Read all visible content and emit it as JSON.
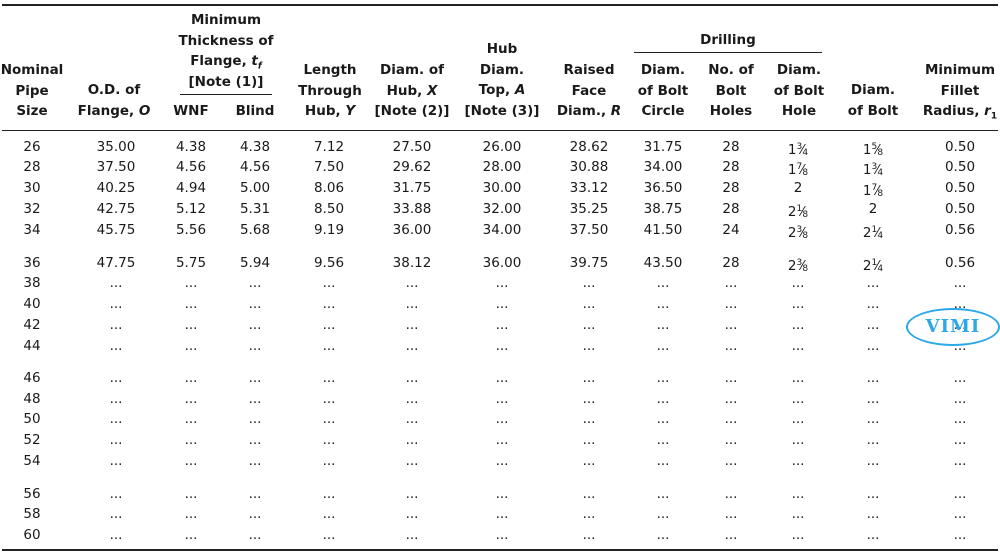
{
  "headers": {
    "nominal": [
      "Nominal",
      "Pipe",
      "Size"
    ],
    "od": "O.D. of",
    "od2": "Flange, ",
    "od_sym": "O",
    "min_title": [
      "Minimum",
      "Thickness of"
    ],
    "min_flange": "Flange, ",
    "min_sym": "t",
    "min_sub": "f",
    "min_note": "[Note (1)]",
    "wnf": "WNF",
    "blind": "Blind",
    "length": [
      "Length",
      "Through"
    ],
    "length_hub": "Hub, ",
    "length_sym": "Y",
    "diam_hub": "Diam. of",
    "diam_hub2": "Hub, ",
    "diam_hub_sym": "X",
    "diam_hub_note": "[Note (2)]",
    "hub_top": [
      "Hub",
      "Diam."
    ],
    "hub_top3": "Top, ",
    "hub_top_sym": "A",
    "hub_top_note": "[Note (3)]",
    "raised": [
      "Raised",
      "Face"
    ],
    "raised3": "Diam., ",
    "raised_sym": "R",
    "drilling": "Drilling",
    "bolt_circle": [
      "Diam.",
      "of Bolt",
      "Circle"
    ],
    "bolt_holes": [
      "No. of",
      "Bolt",
      "Holes"
    ],
    "bolt_hole": [
      "Diam.",
      "of Bolt",
      "Hole"
    ],
    "diam_bolt": [
      "Diam.",
      "of Bolt"
    ],
    "fillet": [
      "Minimum",
      "Fillet"
    ],
    "fillet3": "Radius, ",
    "fillet_sym": "r",
    "fillet_sub": "1"
  },
  "rows": [
    {
      "size": "26",
      "od": "35.00",
      "wnf": "4.38",
      "blind": "4.38",
      "len": "7.12",
      "hub": "27.50",
      "top": "26.00",
      "raised": "28.62",
      "circle": "31.75",
      "holes": "28",
      "hole": {
        "w": "1",
        "n": "3",
        "d": "4"
      },
      "bolt": {
        "w": "1",
        "n": "5",
        "d": "8"
      },
      "fillet": "0.50"
    },
    {
      "size": "28",
      "od": "37.50",
      "wnf": "4.56",
      "blind": "4.56",
      "len": "7.50",
      "hub": "29.62",
      "top": "28.00",
      "raised": "30.88",
      "circle": "34.00",
      "holes": "28",
      "hole": {
        "w": "1",
        "n": "7",
        "d": "8"
      },
      "bolt": {
        "w": "1",
        "n": "3",
        "d": "4"
      },
      "fillet": "0.50"
    },
    {
      "size": "30",
      "od": "40.25",
      "wnf": "4.94",
      "blind": "5.00",
      "len": "8.06",
      "hub": "31.75",
      "top": "30.00",
      "raised": "33.12",
      "circle": "36.50",
      "holes": "28",
      "hole": {
        "w": "2"
      },
      "bolt": {
        "w": "1",
        "n": "7",
        "d": "8"
      },
      "fillet": "0.50"
    },
    {
      "size": "32",
      "od": "42.75",
      "wnf": "5.12",
      "blind": "5.31",
      "len": "8.50",
      "hub": "33.88",
      "top": "32.00",
      "raised": "35.25",
      "circle": "38.75",
      "holes": "28",
      "hole": {
        "w": "2",
        "n": "1",
        "d": "8"
      },
      "bolt": {
        "w": "2"
      },
      "fillet": "0.50"
    },
    {
      "size": "34",
      "od": "45.75",
      "wnf": "5.56",
      "blind": "5.68",
      "len": "9.19",
      "hub": "36.00",
      "top": "34.00",
      "raised": "37.50",
      "circle": "41.50",
      "holes": "24",
      "hole": {
        "w": "2",
        "n": "3",
        "d": "8"
      },
      "bolt": {
        "w": "2",
        "n": "1",
        "d": "4"
      },
      "fillet": "0.56"
    },
    {
      "size": "36",
      "od": "47.75",
      "wnf": "5.75",
      "blind": "5.94",
      "len": "9.56",
      "hub": "38.12",
      "top": "36.00",
      "raised": "39.75",
      "circle": "43.50",
      "holes": "28",
      "hole": {
        "w": "2",
        "n": "3",
        "d": "8"
      },
      "bolt": {
        "w": "2",
        "n": "1",
        "d": "4"
      },
      "fillet": "0.56"
    },
    {
      "size": "38"
    },
    {
      "size": "40"
    },
    {
      "size": "42"
    },
    {
      "size": "44"
    },
    {
      "size": "46"
    },
    {
      "size": "48"
    },
    {
      "size": "50"
    },
    {
      "size": "52"
    },
    {
      "size": "54"
    },
    {
      "size": "56"
    },
    {
      "size": "58"
    },
    {
      "size": "60"
    }
  ],
  "ellipsis": "...",
  "stamp_text": "VIMI",
  "colors": {
    "stamp": "#2aa8e8",
    "rule": "#222222"
  }
}
